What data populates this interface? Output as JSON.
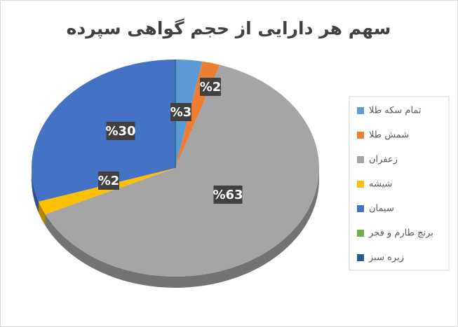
{
  "chart_data": {
    "type": "pie",
    "title": "سهم هر دارایی از حجم گواهی سپرده",
    "categories": [
      "تمام سکه طلا",
      "شمش طلا",
      "زعفران",
      "شیشه",
      "سیمان",
      "برنج طارم و فجر",
      "زیره سبز"
    ],
    "values": [
      3,
      2,
      63,
      2,
      30,
      0,
      0
    ],
    "value_labels": [
      "%3",
      "%2",
      "%63",
      "%2",
      "%30",
      null,
      null
    ],
    "colors": [
      "#5b9bd5",
      "#ed7d31",
      "#a5a5a5",
      "#ffc000",
      "#4472c4",
      "#70ad47",
      "#255e91"
    ],
    "legend": "right"
  }
}
